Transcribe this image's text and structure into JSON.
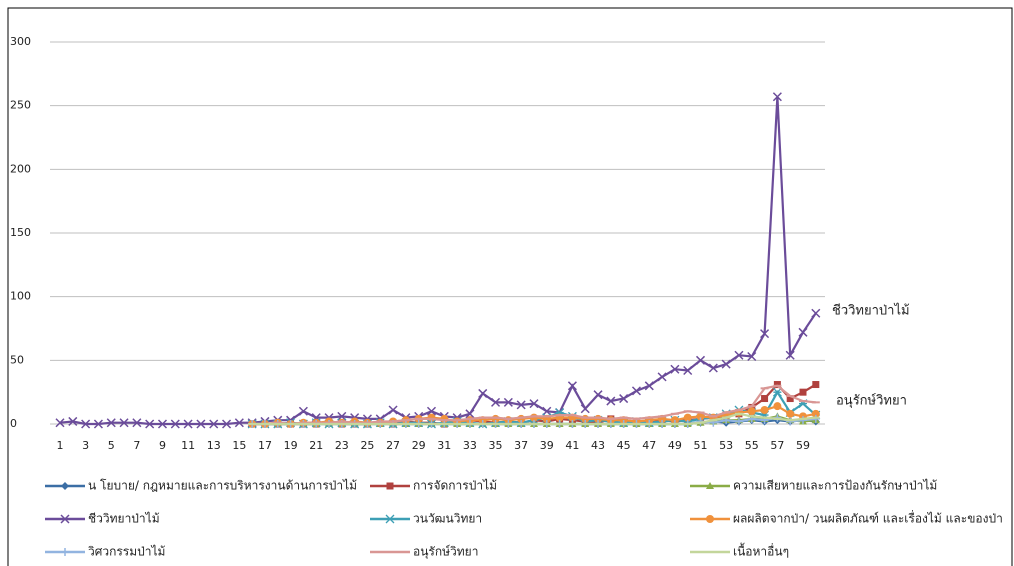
{
  "chart_data": {
    "type": "line",
    "categories": [
      1,
      null,
      3,
      null,
      5,
      null,
      7,
      null,
      9,
      null,
      11,
      null,
      13,
      null,
      15,
      null,
      17,
      null,
      19,
      null,
      21,
      null,
      23,
      null,
      25,
      null,
      27,
      null,
      29,
      null,
      31,
      null,
      33,
      null,
      35,
      null,
      37,
      null,
      39,
      null,
      41,
      null,
      43,
      null,
      45,
      null,
      47,
      null,
      49,
      null,
      51,
      null,
      53,
      null,
      55,
      null,
      57,
      null,
      59,
      null
    ],
    "ylim": [
      0,
      300
    ],
    "yticks": [
      0,
      50,
      100,
      150,
      200,
      250,
      300
    ],
    "grid": true,
    "annotations": [
      "ชีววิทยาป่าไม้",
      "อนุรักษ์วิทยา"
    ],
    "series": [
      {
        "name": "น โยบาย/ กฎหมายและการบริหารงานด้านการป่าไม้",
        "color": "#3b6ea5",
        "marker": "diamond",
        "values": [
          null,
          null,
          null,
          null,
          null,
          null,
          null,
          null,
          null,
          null,
          null,
          null,
          null,
          null,
          null,
          0,
          0,
          0,
          0,
          0,
          0,
          0,
          0,
          0,
          0,
          0,
          0,
          0,
          0,
          0,
          0,
          0,
          0,
          0,
          0,
          0,
          0,
          0,
          0,
          0,
          0,
          0,
          0,
          0,
          0,
          0,
          0,
          0,
          0,
          0,
          1,
          2,
          1,
          2,
          3,
          2,
          3,
          2,
          3,
          2
        ]
      },
      {
        "name": "การจัดการป่าไม้",
        "color": "#b0413e",
        "marker": "square",
        "values": [
          null,
          null,
          null,
          null,
          null,
          null,
          null,
          null,
          null,
          null,
          null,
          null,
          null,
          null,
          null,
          0,
          0,
          0,
          0,
          0,
          0,
          1,
          0,
          0,
          0,
          1,
          0,
          2,
          1,
          1,
          0,
          2,
          3,
          2,
          1,
          2,
          1,
          3,
          2,
          4,
          3,
          2,
          1,
          4,
          3,
          2,
          1,
          3,
          2,
          3,
          4,
          5,
          6,
          8,
          13,
          20,
          31,
          20,
          25,
          31
        ]
      },
      {
        "name": "ความเสียหายและการป้องกันรักษาป่าไม้",
        "color": "#8aac46",
        "marker": "triangle",
        "values": [
          null,
          null,
          null,
          null,
          null,
          null,
          null,
          null,
          null,
          null,
          null,
          null,
          null,
          null,
          null,
          0,
          0,
          0,
          0,
          0,
          0,
          0,
          0,
          0,
          0,
          0,
          0,
          0,
          0,
          0,
          0,
          0,
          0,
          0,
          0,
          0,
          0,
          0,
          0,
          0,
          0,
          0,
          0,
          0,
          0,
          0,
          0,
          0,
          0,
          0,
          1,
          2,
          3,
          3,
          4,
          4,
          6,
          3,
          2,
          3
        ]
      },
      {
        "name": "ชีววิทยาป่าไม้",
        "color": "#6b4c9a",
        "marker": "x",
        "values": [
          1,
          2,
          0,
          0,
          1,
          1,
          1,
          0,
          0,
          0,
          0,
          0,
          0,
          0,
          1,
          1,
          2,
          3,
          3,
          10,
          5,
          5,
          6,
          5,
          4,
          4,
          11,
          5,
          6,
          10,
          6,
          5,
          8,
          24,
          17,
          17,
          15,
          16,
          10,
          9,
          30,
          12,
          23,
          18,
          20,
          26,
          30,
          37,
          43,
          42,
          50,
          44,
          47,
          54,
          53,
          71,
          257,
          54,
          72,
          87
        ]
      },
      {
        "name": "วนวัฒนวิทยา",
        "color": "#3d9fb5",
        "marker": "star",
        "values": [
          null,
          null,
          null,
          null,
          null,
          null,
          null,
          null,
          null,
          null,
          null,
          null,
          null,
          null,
          null,
          0,
          0,
          0,
          1,
          0,
          1,
          0,
          1,
          0,
          0,
          1,
          0,
          1,
          1,
          0,
          1,
          2,
          1,
          0,
          1,
          2,
          1,
          3,
          5,
          9,
          6,
          2,
          3,
          2,
          1,
          2,
          1,
          2,
          3,
          2,
          4,
          5,
          8,
          11,
          9,
          7,
          25,
          9,
          16,
          7
        ]
      },
      {
        "name": "ผลผลิตจากป่า/ วนผลิตภัณฑ์ และเรื่องไม้ และของป่า",
        "color": "#f0913c",
        "marker": "circle",
        "values": [
          null,
          null,
          null,
          null,
          null,
          null,
          null,
          null,
          null,
          null,
          null,
          null,
          null,
          null,
          null,
          0,
          0,
          1,
          0,
          1,
          1,
          2,
          1,
          2,
          1,
          1,
          2,
          3,
          4,
          5,
          4,
          2,
          3,
          3,
          4,
          3,
          4,
          5,
          4,
          5,
          5,
          4,
          4,
          3,
          3,
          2,
          3,
          4,
          3,
          5,
          6,
          5,
          7,
          9,
          10,
          11,
          14,
          8,
          6,
          8
        ]
      },
      {
        "name": "วิศวกรรมป่าไม้",
        "color": "#92b4e0",
        "marker": "plus",
        "values": [
          null,
          null,
          null,
          null,
          null,
          null,
          null,
          null,
          null,
          null,
          null,
          null,
          null,
          null,
          null,
          0,
          0,
          0,
          0,
          0,
          0,
          0,
          0,
          0,
          0,
          0,
          0,
          0,
          0,
          0,
          0,
          0,
          0,
          0,
          0,
          0,
          0,
          0,
          0,
          0,
          0,
          0,
          0,
          0,
          0,
          0,
          0,
          0,
          0,
          0,
          2,
          1,
          3,
          2,
          4,
          3,
          5,
          2,
          3,
          4
        ]
      },
      {
        "name": "อนุรักษ์วิทยา",
        "color": "#d99694",
        "marker": "dash",
        "values": [
          null,
          null,
          null,
          null,
          null,
          null,
          null,
          null,
          null,
          null,
          null,
          null,
          null,
          null,
          null,
          0,
          0,
          1,
          0,
          1,
          1,
          1,
          2,
          1,
          1,
          2,
          2,
          3,
          4,
          4,
          3,
          3,
          4,
          5,
          5,
          4,
          5,
          6,
          6,
          7,
          7,
          5,
          5,
          4,
          5,
          4,
          5,
          6,
          8,
          10,
          9,
          6,
          9,
          11,
          14,
          28,
          30,
          22,
          18,
          17
        ]
      },
      {
        "name": "เนื้อหาอื่นๆ",
        "color": "#c3d69b",
        "marker": "dash",
        "values": [
          null,
          null,
          null,
          null,
          null,
          null,
          null,
          null,
          null,
          null,
          null,
          null,
          null,
          null,
          null,
          0,
          0,
          0,
          0,
          0,
          0,
          0,
          0,
          0,
          0,
          0,
          0,
          0,
          0,
          0,
          0,
          0,
          0,
          0,
          0,
          0,
          0,
          0,
          0,
          0,
          0,
          0,
          0,
          0,
          0,
          0,
          0,
          0,
          0,
          0,
          1,
          3,
          5,
          8,
          6,
          5,
          4,
          3,
          4,
          5
        ]
      }
    ]
  }
}
